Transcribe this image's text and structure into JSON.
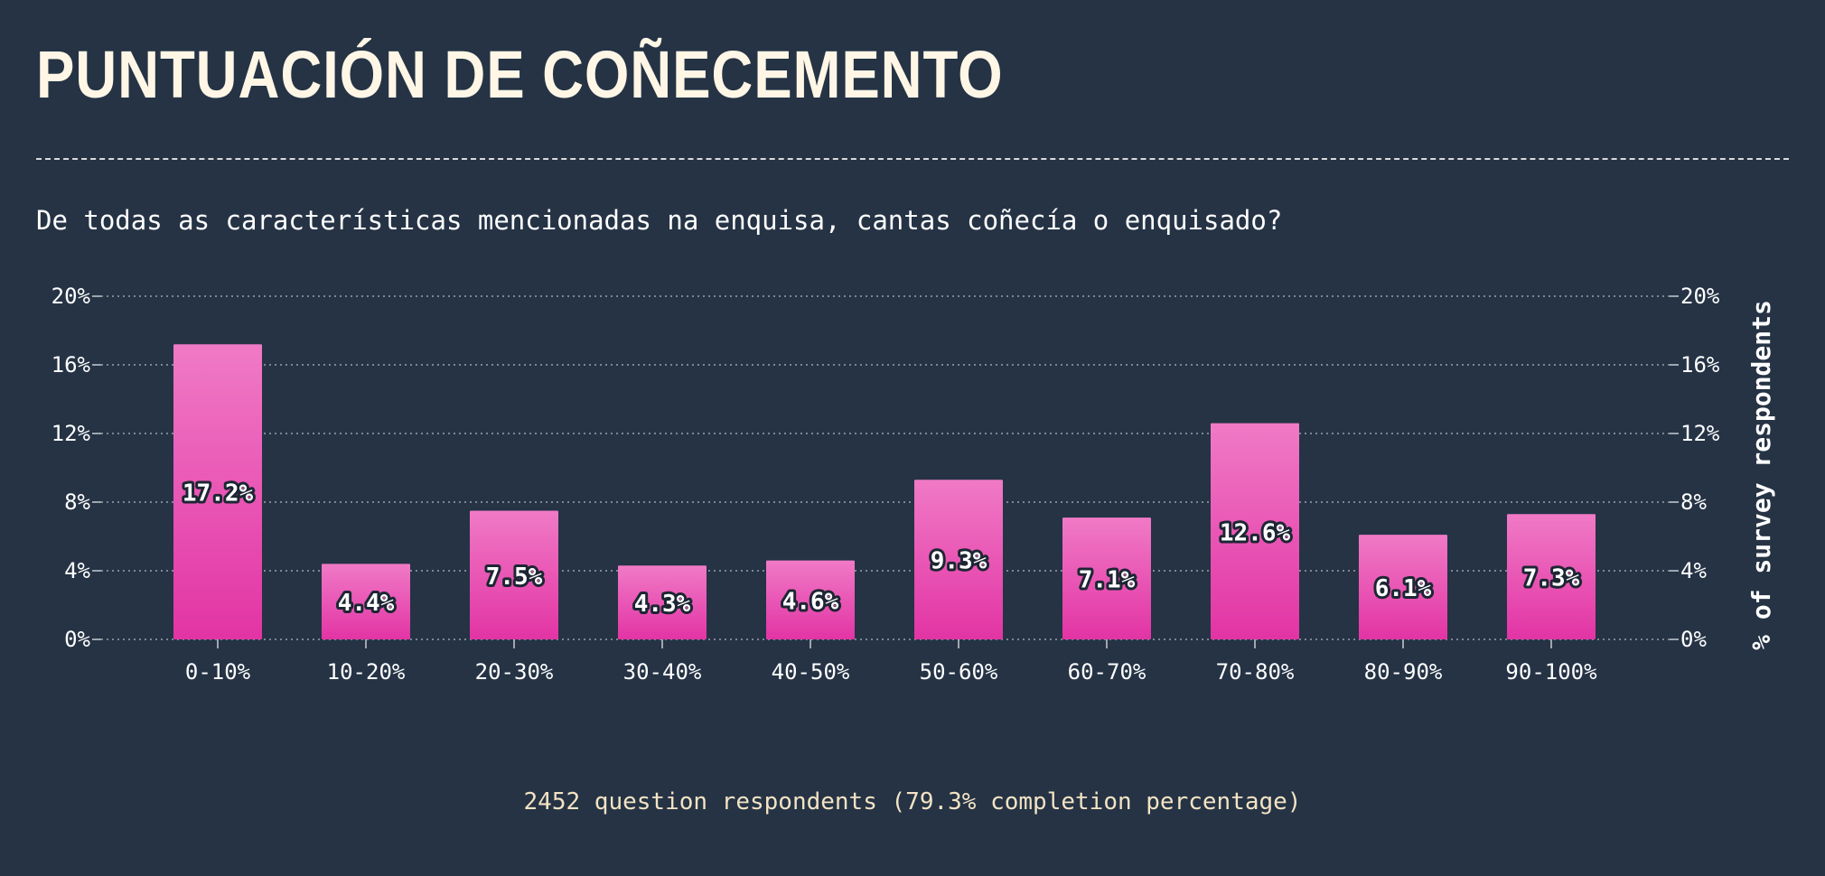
{
  "header": {
    "title": "PUNTUACIÓN DE COÑECEMENTO",
    "question": "De todas as características mencionadas na enquisa, cantas coñecía o enquisado?"
  },
  "footer": {
    "respondents": "2452 question respondents (79.3% completion percentage)"
  },
  "colors": {
    "background": "#253345",
    "bar_top": "#f07ac6",
    "bar_bottom": "#e234a4",
    "title": "#fff6e6",
    "footer": "#f3e3c3"
  },
  "chart_data": {
    "type": "bar",
    "categories": [
      "0-10%",
      "10-20%",
      "20-30%",
      "30-40%",
      "40-50%",
      "50-60%",
      "60-70%",
      "70-80%",
      "80-90%",
      "90-100%"
    ],
    "values": [
      17.2,
      4.4,
      7.5,
      4.3,
      4.6,
      9.3,
      7.1,
      12.6,
      6.1,
      7.3
    ],
    "data_labels": [
      "17.2%",
      "4.4%",
      "7.5%",
      "4.3%",
      "4.6%",
      "9.3%",
      "7.1%",
      "12.6%",
      "6.1%",
      "7.3%"
    ],
    "ylim": [
      0,
      20
    ],
    "yticks": [
      0,
      4,
      8,
      12,
      16,
      20
    ],
    "ytick_labels": [
      "0%",
      "4%",
      "8%",
      "12%",
      "16%",
      "20%"
    ],
    "ylabel_right": "% of survey respondents",
    "grid": true
  }
}
